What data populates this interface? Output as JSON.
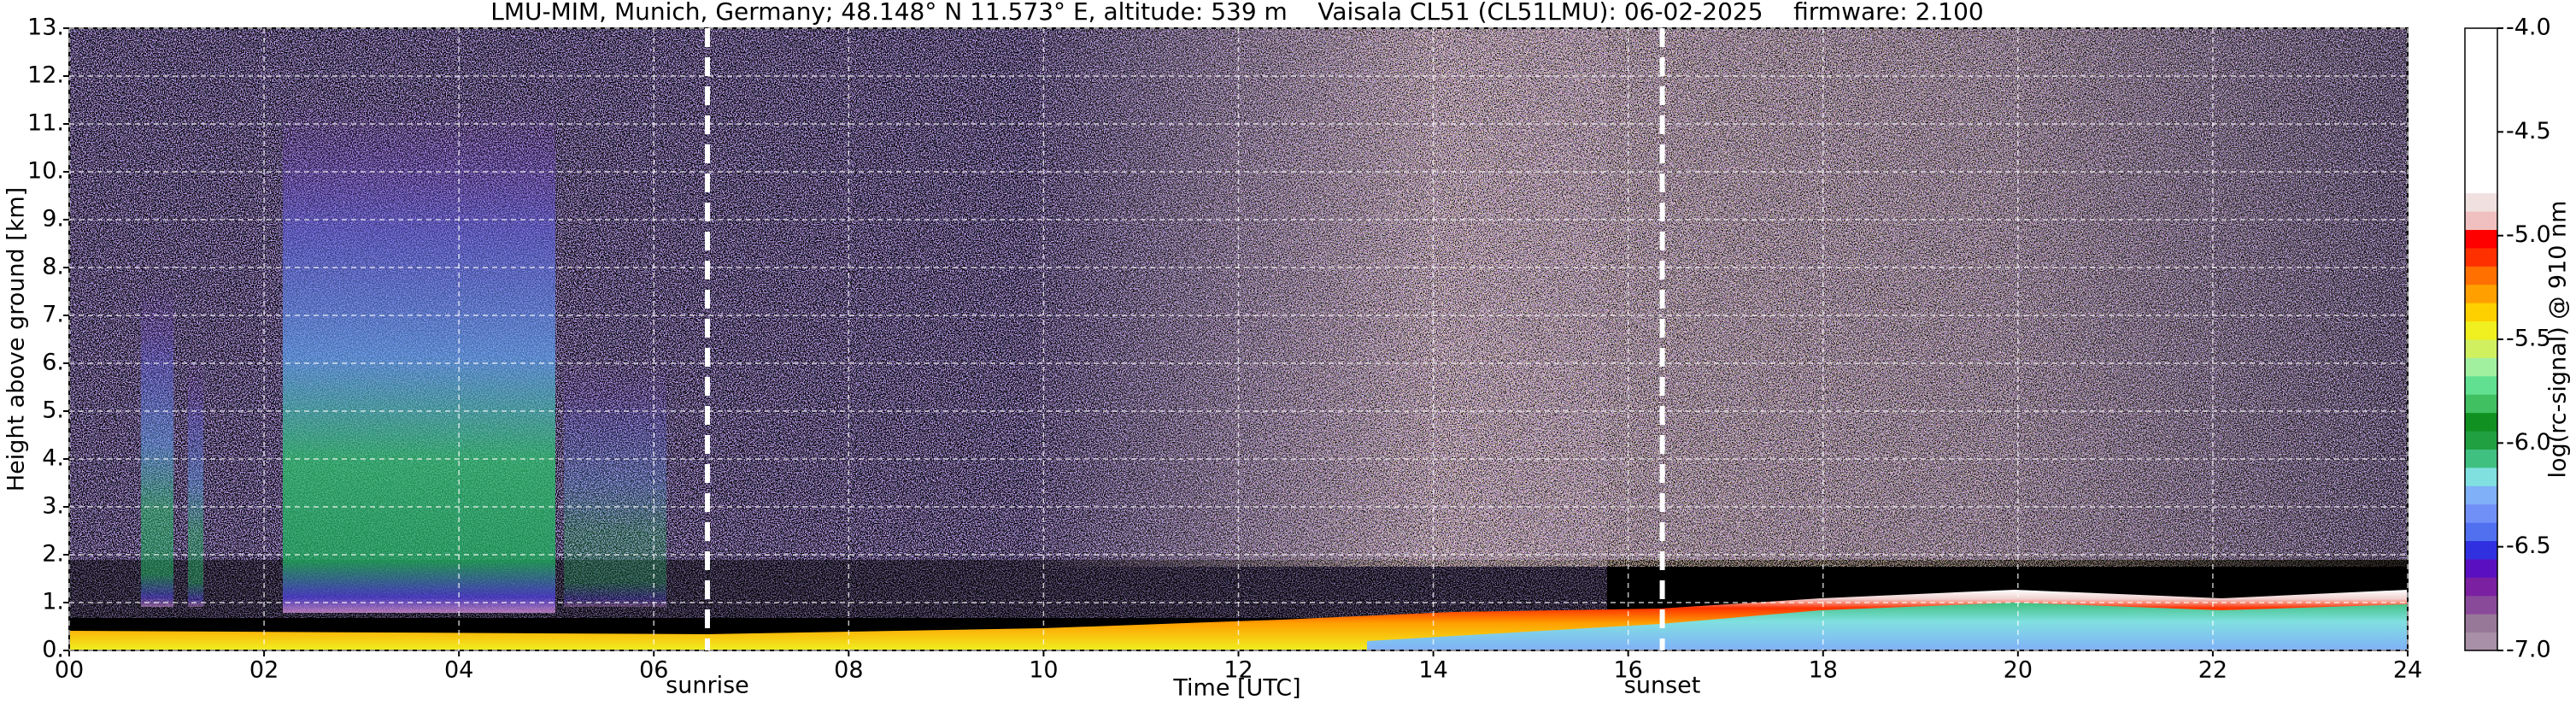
{
  "chart_data": {
    "type": "heatmap",
    "title": "LMU-MIM, Munich, Germany; 48.148° N 11.573° E, altitude: 539 m    Vaisala CL51 (CL51LMU): 06-02-2025    firmware: 2.100",
    "xlabel": "Time [UTC]",
    "ylabel": "Height above ground [km]",
    "xlim": [
      0,
      24
    ],
    "xticks": [
      {
        "value": 0,
        "label": "00"
      },
      {
        "value": 2,
        "label": "02"
      },
      {
        "value": 4,
        "label": "04"
      },
      {
        "value": 6,
        "label": "06"
      },
      {
        "value": 8,
        "label": "08"
      },
      10,
      12,
      14,
      16,
      18,
      20,
      22,
      24
    ],
    "ylim": [
      0,
      13
    ],
    "yticks": [
      {
        "value": 0,
        "label": "0."
      },
      {
        "value": 1,
        "label": "1."
      },
      {
        "value": 2,
        "label": "2."
      },
      {
        "value": 3,
        "label": "3."
      },
      {
        "value": 4,
        "label": "4."
      },
      {
        "value": 5,
        "label": "5."
      },
      {
        "value": 6,
        "label": "6."
      },
      {
        "value": 7,
        "label": "7."
      },
      {
        "value": 8,
        "label": "8."
      },
      {
        "value": 9,
        "label": "9."
      },
      {
        "value": 10,
        "label": "10."
      },
      {
        "value": 11,
        "label": "11."
      },
      {
        "value": 12,
        "label": "12."
      },
      {
        "value": 13,
        "label": "13."
      }
    ],
    "grid": true,
    "annotations": [
      {
        "text": "sunrise",
        "x": 6.55
      },
      {
        "text": "sunset",
        "x": 16.35
      }
    ],
    "colorbar": {
      "label": "log(rc-signal) @ 910 nm",
      "lim": [
        -7,
        -4
      ],
      "ticks": [
        {
          "value": -7,
          "label": "-7.0"
        },
        {
          "value": -6.5,
          "label": "-6.5"
        },
        {
          "value": -6,
          "label": "-6.0"
        },
        {
          "value": -5.5,
          "label": "-5.5"
        },
        {
          "value": -5,
          "label": "-5.0"
        },
        {
          "value": -4.5,
          "label": "-4.5"
        },
        {
          "value": -4,
          "label": "-4.0"
        }
      ],
      "colors": [
        "#a890a8",
        "#987898",
        "#8a4a9a",
        "#7a20a0",
        "#5a10c0",
        "#3030e0",
        "#5070f0",
        "#7090f8",
        "#80b0f8",
        "#80e0e0",
        "#40c080",
        "#20a040",
        "#109020",
        "#40c060",
        "#60e090",
        "#a0f0a0",
        "#d0f060",
        "#f0f020",
        "#ffd000",
        "#ffa000",
        "#ff7000",
        "#ff3000",
        "#ff0000",
        "#f0c0c0",
        "#f0e0e0",
        "#ffffff",
        "#ffffff",
        "#ffffff",
        "#ffffff",
        "#ffffff",
        "#ffffff",
        "#ffffff",
        "#ffffff",
        "#ffffff"
      ]
    }
  }
}
